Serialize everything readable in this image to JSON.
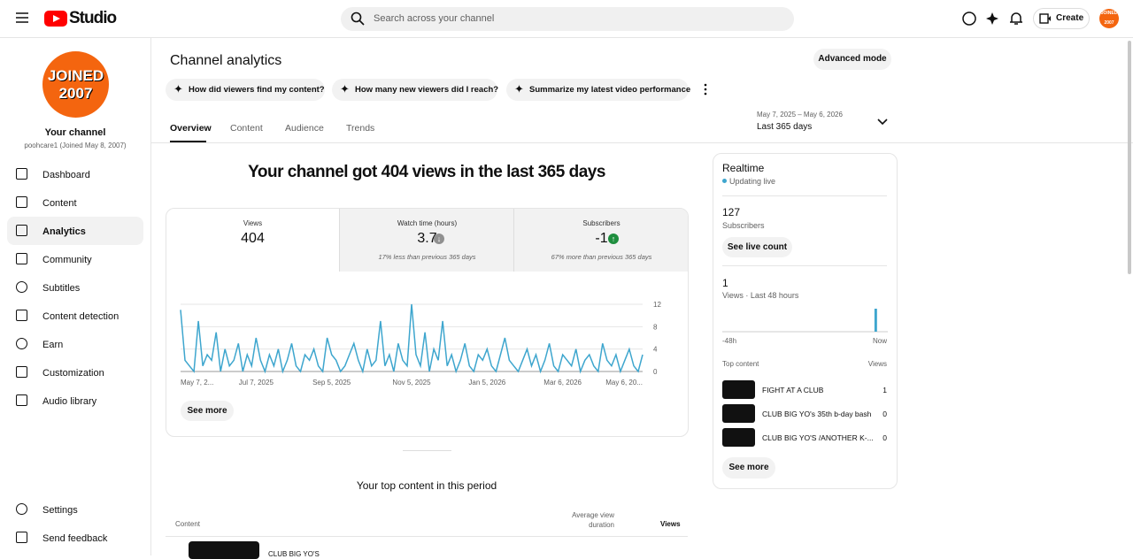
{
  "header": {
    "logo": "Studio",
    "search_placeholder": "Search across your channel",
    "create": "Create",
    "avatar": "JOINED 2007"
  },
  "sidebar": {
    "avatar_lines": [
      "JOINED",
      "2007"
    ],
    "channel_title": "Your channel",
    "channel_sub": "poohcare1 (Joined May 8, 2007)",
    "items": [
      "Dashboard",
      "Content",
      "Analytics",
      "Community",
      "Subtitles",
      "Content detection",
      "Earn",
      "Customization",
      "Audio library"
    ],
    "bottom_items": [
      "Settings",
      "Send feedback"
    ]
  },
  "page": {
    "title": "Channel analytics",
    "advanced": "Advanced mode",
    "prompts": [
      "How did viewers find my content?",
      "How many new viewers did I reach?",
      "Summarize my latest video performance"
    ],
    "tabs": [
      "Overview",
      "Content",
      "Audience",
      "Trends"
    ],
    "date_range": "May 7, 2025 – May 6, 2026",
    "date_label": "Last 365 days",
    "headline": "Your channel got 404 views in the last 365 days"
  },
  "metrics": [
    {
      "label": "Views",
      "value": 404
    },
    {
      "label": "Watch time (hours)",
      "value": 3.7,
      "note": "17% less than previous 365 days"
    },
    {
      "label": "Subscribers",
      "value": -1,
      "note": "67% more than previous 365 days"
    }
  ],
  "chart_data": {
    "type": "line",
    "categories": [
      "May 7, 2...",
      null,
      null,
      null,
      null,
      null,
      null,
      null,
      null,
      null,
      null,
      null,
      null,
      null,
      null,
      null,
      null,
      "Jul 7, 2025",
      null,
      null,
      null,
      null,
      null,
      null,
      null,
      null,
      null,
      null,
      null,
      null,
      null,
      null,
      null,
      null,
      "Sep 5, 2025",
      null,
      null,
      null,
      null,
      null,
      null,
      null,
      null,
      null,
      null,
      null,
      null,
      null,
      null,
      null,
      null,
      null,
      "Nov 5, 2025",
      null,
      null,
      null,
      null,
      null,
      null,
      null,
      null,
      null,
      null,
      null,
      null,
      null,
      null,
      null,
      null,
      "Jan 5, 2026",
      null,
      null,
      null,
      null,
      null,
      null,
      null,
      null,
      null,
      null,
      null,
      null,
      null,
      null,
      null,
      null,
      "Mar 6, 2026",
      null,
      null,
      null,
      null,
      null,
      null,
      null,
      null,
      null,
      null,
      null,
      null,
      null,
      null,
      null,
      null,
      null,
      "May 6, 20..."
    ],
    "series": [
      {
        "color": "#3ea6ce",
        "values": [
          11,
          2,
          1,
          0,
          9,
          1,
          3,
          2,
          7,
          0,
          4,
          1,
          2,
          5,
          0,
          3,
          1,
          6,
          2,
          0,
          3,
          1,
          4,
          0,
          2,
          5,
          1,
          0,
          3,
          2,
          4,
          1,
          0,
          6,
          3,
          2,
          0,
          1,
          3,
          5,
          2,
          0,
          4,
          1,
          2,
          9,
          1,
          3,
          0,
          5,
          2,
          1,
          12,
          3,
          1,
          7,
          0,
          4,
          2,
          9,
          1,
          3,
          0,
          2,
          5,
          1,
          0,
          3,
          2,
          4,
          1,
          0,
          3,
          6,
          2,
          1,
          0,
          2,
          4,
          1,
          3,
          0,
          2,
          5,
          1,
          0,
          3,
          2,
          1,
          4,
          0,
          2,
          3,
          1,
          0,
          5,
          2,
          1,
          3,
          0,
          2,
          4,
          1,
          0,
          3
        ]
      }
    ],
    "ylim": [
      0,
      12
    ],
    "yticks": [
      0,
      4,
      8,
      12
    ],
    "grid": true
  },
  "see_more": "See more",
  "top_content": {
    "title": "Your top content in this period",
    "columns": [
      "Content",
      "Average view duration",
      "Views"
    ],
    "first_row": "CLUB BIG YO'S"
  },
  "realtime": {
    "title": "Realtime",
    "status": "Updating live",
    "subscribers": 127,
    "subscribers_label": "Subscribers",
    "live_button": "See live count",
    "views": 1,
    "views_label": "Views · Last 48 hours",
    "bars": [
      0,
      0,
      0,
      0,
      0,
      0,
      0,
      0,
      0,
      0,
      0,
      0,
      0,
      0,
      0,
      0,
      0,
      0,
      0,
      0,
      0,
      0,
      0,
      0,
      0,
      0,
      0,
      0,
      0,
      0,
      0,
      0,
      0,
      0,
      0,
      0,
      0,
      0,
      0,
      0,
      0,
      0,
      0,
      0,
      1,
      0,
      0,
      0
    ],
    "axis_start": "-48h",
    "axis_end": "Now",
    "top_label": "Top content",
    "views_col": "Views",
    "rows": [
      {
        "title": "FIGHT AT A CLUB",
        "views": 1
      },
      {
        "title": "CLUB BIG YO's 35th b-day bash",
        "views": 0
      },
      {
        "title": "CLUB BIG YO'S /ANOTHER K-...",
        "views": 0
      }
    ],
    "see_more": "See more"
  }
}
